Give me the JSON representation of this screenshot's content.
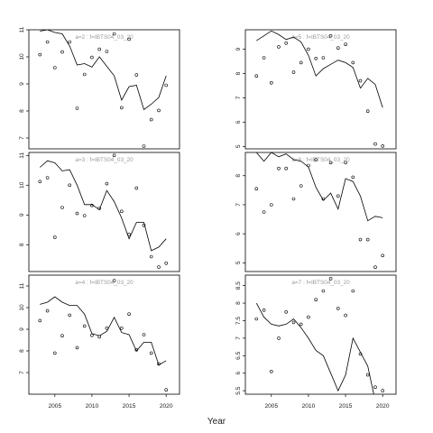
{
  "chart_data": {
    "type": "scatter",
    "xlabel": "Year",
    "x_ticks": [
      2005,
      2010,
      2015,
      2020
    ],
    "xlim": [
      2001.5,
      2021.8
    ],
    "panels": [
      {
        "title": "a=2 : f=IBTS04_03_20",
        "column": "left",
        "ylim": [
          6.6,
          11.0
        ],
        "y_ticks": [
          7,
          8,
          9,
          10,
          11
        ],
        "points": [
          [
            2003,
            10.08
          ],
          [
            2004,
            10.55
          ],
          [
            2005,
            9.6
          ],
          [
            2006,
            10.18
          ],
          [
            2007,
            10.55
          ],
          [
            2008,
            8.1
          ],
          [
            2009,
            9.35
          ],
          [
            2010,
            9.98
          ],
          [
            2011,
            10.28
          ],
          [
            2012,
            10.2
          ],
          [
            2013,
            10.85
          ],
          [
            2014,
            8.12
          ],
          [
            2015,
            10.65
          ],
          [
            2016,
            9.33
          ],
          [
            2017,
            6.7
          ],
          [
            2018,
            7.68
          ],
          [
            2019,
            8.02
          ],
          [
            2020,
            8.95
          ]
        ],
        "fit": [
          [
            2003,
            10.95
          ],
          [
            2004,
            11.0
          ],
          [
            2005,
            10.9
          ],
          [
            2006,
            10.85
          ],
          [
            2007,
            10.4
          ],
          [
            2008,
            9.7
          ],
          [
            2009,
            9.75
          ],
          [
            2010,
            9.62
          ],
          [
            2011,
            10.0
          ],
          [
            2012,
            9.65
          ],
          [
            2013,
            9.3
          ],
          [
            2014,
            8.4
          ],
          [
            2015,
            8.9
          ],
          [
            2016,
            8.95
          ],
          [
            2017,
            8.05
          ],
          [
            2018,
            8.25
          ],
          [
            2019,
            8.5
          ],
          [
            2020,
            9.3
          ]
        ]
      },
      {
        "title": "a=3 : f=IBTS04_03_20",
        "column": "left",
        "ylim": [
          7.1,
          11.1
        ],
        "y_ticks": [
          8,
          9,
          10,
          11
        ],
        "points": [
          [
            2003,
            10.12
          ],
          [
            2004,
            10.25
          ],
          [
            2005,
            8.25
          ],
          [
            2006,
            9.25
          ],
          [
            2007,
            10.0
          ],
          [
            2008,
            9.05
          ],
          [
            2009,
            8.98
          ],
          [
            2010,
            9.32
          ],
          [
            2011,
            9.22
          ],
          [
            2012,
            10.05
          ],
          [
            2013,
            11.0
          ],
          [
            2014,
            9.12
          ],
          [
            2015,
            8.35
          ],
          [
            2016,
            9.9
          ],
          [
            2017,
            8.65
          ],
          [
            2018,
            7.6
          ],
          [
            2019,
            7.25
          ],
          [
            2020,
            7.38
          ]
        ],
        "fit": [
          [
            2003,
            10.6
          ],
          [
            2004,
            10.82
          ],
          [
            2005,
            10.75
          ],
          [
            2006,
            10.48
          ],
          [
            2007,
            10.52
          ],
          [
            2008,
            10.0
          ],
          [
            2009,
            9.35
          ],
          [
            2010,
            9.35
          ],
          [
            2011,
            9.18
          ],
          [
            2012,
            9.82
          ],
          [
            2013,
            9.45
          ],
          [
            2014,
            8.9
          ],
          [
            2015,
            8.2
          ],
          [
            2016,
            8.75
          ],
          [
            2017,
            8.75
          ],
          [
            2018,
            7.8
          ],
          [
            2019,
            7.92
          ],
          [
            2020,
            8.2
          ]
        ]
      },
      {
        "title": "a=4 : f=IBTS04_03_20",
        "column": "left",
        "ylim": [
          6.0,
          11.5
        ],
        "y_ticks": [
          7,
          8,
          9,
          10,
          11
        ],
        "points": [
          [
            2003,
            9.4
          ],
          [
            2004,
            9.85
          ],
          [
            2005,
            7.9
          ],
          [
            2006,
            8.7
          ],
          [
            2007,
            9.65
          ],
          [
            2008,
            8.15
          ],
          [
            2009,
            9.15
          ],
          [
            2010,
            8.72
          ],
          [
            2011,
            8.65
          ],
          [
            2012,
            9.05
          ],
          [
            2013,
            11.25
          ],
          [
            2014,
            9.05
          ],
          [
            2015,
            9.7
          ],
          [
            2016,
            8.05
          ],
          [
            2017,
            8.75
          ],
          [
            2018,
            7.9
          ],
          [
            2019,
            7.4
          ],
          [
            2020,
            6.2
          ]
        ],
        "fit": [
          [
            2003,
            10.15
          ],
          [
            2004,
            10.25
          ],
          [
            2005,
            10.5
          ],
          [
            2006,
            10.25
          ],
          [
            2007,
            10.1
          ],
          [
            2008,
            10.1
          ],
          [
            2009,
            9.7
          ],
          [
            2010,
            8.8
          ],
          [
            2011,
            8.7
          ],
          [
            2012,
            8.9
          ],
          [
            2013,
            9.55
          ],
          [
            2014,
            8.85
          ],
          [
            2015,
            8.75
          ],
          [
            2016,
            8.0
          ],
          [
            2017,
            8.4
          ],
          [
            2018,
            8.4
          ],
          [
            2019,
            7.35
          ],
          [
            2020,
            7.55
          ]
        ]
      },
      {
        "title": "a=5 : f=IBTS04_03_20",
        "column": "right",
        "ylim": [
          4.9,
          9.8
        ],
        "y_ticks": [
          5,
          6,
          7,
          8,
          9
        ],
        "points": [
          [
            2003,
            7.9
          ],
          [
            2004,
            8.65
          ],
          [
            2005,
            7.62
          ],
          [
            2006,
            9.1
          ],
          [
            2007,
            9.25
          ],
          [
            2008,
            8.05
          ],
          [
            2009,
            8.45
          ],
          [
            2010,
            9.0
          ],
          [
            2011,
            8.62
          ],
          [
            2012,
            8.65
          ],
          [
            2013,
            9.55
          ],
          [
            2014,
            9.05
          ],
          [
            2015,
            9.2
          ],
          [
            2016,
            8.45
          ],
          [
            2017,
            7.7
          ],
          [
            2018,
            6.45
          ],
          [
            2019,
            5.1
          ],
          [
            2020,
            5.02
          ]
        ],
        "fit": [
          [
            2003,
            9.35
          ],
          [
            2004,
            9.55
          ],
          [
            2005,
            9.75
          ],
          [
            2006,
            9.6
          ],
          [
            2007,
            9.4
          ],
          [
            2008,
            9.5
          ],
          [
            2009,
            9.3
          ],
          [
            2010,
            8.75
          ],
          [
            2011,
            7.9
          ],
          [
            2012,
            8.2
          ],
          [
            2013,
            8.38
          ],
          [
            2014,
            8.55
          ],
          [
            2015,
            8.45
          ],
          [
            2016,
            8.25
          ],
          [
            2017,
            7.4
          ],
          [
            2018,
            7.8
          ],
          [
            2019,
            7.55
          ],
          [
            2020,
            6.6
          ]
        ]
      },
      {
        "title": "a=6 : f=IBTS04_03_20",
        "column": "right",
        "ylim": [
          4.7,
          8.8
        ],
        "y_ticks": [
          5,
          6,
          7,
          8
        ],
        "points": [
          [
            2003,
            7.55
          ],
          [
            2004,
            6.75
          ],
          [
            2005,
            7.0
          ],
          [
            2006,
            8.25
          ],
          [
            2007,
            8.25
          ],
          [
            2008,
            7.2
          ],
          [
            2009,
            7.65
          ],
          [
            2010,
            8.35
          ],
          [
            2011,
            8.55
          ],
          [
            2012,
            7.2
          ],
          [
            2013,
            8.45
          ],
          [
            2014,
            7.3
          ],
          [
            2015,
            8.45
          ],
          [
            2016,
            7.95
          ],
          [
            2017,
            5.8
          ],
          [
            2018,
            5.8
          ],
          [
            2019,
            4.85
          ],
          [
            2020,
            5.25
          ]
        ],
        "fit": [
          [
            2003,
            8.8
          ],
          [
            2004,
            8.5
          ],
          [
            2005,
            8.8
          ],
          [
            2006,
            8.65
          ],
          [
            2007,
            8.75
          ],
          [
            2008,
            8.55
          ],
          [
            2009,
            8.5
          ],
          [
            2010,
            8.3
          ],
          [
            2011,
            7.6
          ],
          [
            2012,
            7.15
          ],
          [
            2013,
            7.4
          ],
          [
            2014,
            6.85
          ],
          [
            2015,
            7.9
          ],
          [
            2016,
            7.8
          ],
          [
            2017,
            7.3
          ],
          [
            2018,
            6.45
          ],
          [
            2019,
            6.6
          ],
          [
            2020,
            6.55
          ]
        ]
      },
      {
        "title": "a=7 : f=IBTS04_03_20",
        "column": "right",
        "ylim": [
          5.4,
          8.8
        ],
        "y_ticks": [
          5.5,
          6.0,
          6.5,
          7.0,
          7.5,
          8.0,
          8.5
        ],
        "points": [
          [
            2003,
            7.55
          ],
          [
            2004,
            7.8
          ],
          [
            2005,
            6.05
          ],
          [
            2006,
            7.0
          ],
          [
            2007,
            7.75
          ],
          [
            2008,
            7.45
          ],
          [
            2009,
            7.4
          ],
          [
            2010,
            7.6
          ],
          [
            2011,
            8.1
          ],
          [
            2012,
            8.35
          ],
          [
            2013,
            8.7
          ],
          [
            2014,
            7.85
          ],
          [
            2015,
            7.65
          ],
          [
            2016,
            8.35
          ],
          [
            2017,
            6.55
          ],
          [
            2018,
            5.95
          ],
          [
            2019,
            5.6
          ],
          [
            2020,
            5.5
          ]
        ],
        "fit": [
          [
            2003,
            8.0
          ],
          [
            2004,
            7.6
          ],
          [
            2005,
            7.4
          ],
          [
            2006,
            7.35
          ],
          [
            2007,
            7.4
          ],
          [
            2008,
            7.55
          ],
          [
            2009,
            7.3
          ],
          [
            2010,
            7.0
          ],
          [
            2011,
            6.65
          ],
          [
            2012,
            6.5
          ],
          [
            2013,
            6.0
          ],
          [
            2014,
            5.5
          ],
          [
            2015,
            5.95
          ],
          [
            2016,
            7.0
          ],
          [
            2017,
            6.6
          ],
          [
            2018,
            6.2
          ],
          [
            2019,
            5.2
          ],
          [
            2020,
            5.0
          ]
        ]
      }
    ]
  }
}
